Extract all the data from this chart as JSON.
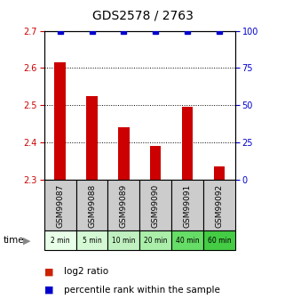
{
  "title": "GDS2578 / 2763",
  "samples": [
    "GSM99087",
    "GSM99088",
    "GSM99089",
    "GSM99090",
    "GSM99091",
    "GSM99092"
  ],
  "time_labels": [
    "2 min",
    "5 min",
    "10 min",
    "20 min",
    "40 min",
    "60 min"
  ],
  "log2_values": [
    2.615,
    2.525,
    2.44,
    2.39,
    2.495,
    2.335
  ],
  "percentile_values": [
    100,
    100,
    100,
    100,
    100,
    100
  ],
  "ylim_left": [
    2.3,
    2.7
  ],
  "ylim_right": [
    0,
    100
  ],
  "yticks_left": [
    2.3,
    2.4,
    2.5,
    2.6,
    2.7
  ],
  "yticks_right": [
    0,
    25,
    50,
    75,
    100
  ],
  "bar_color": "#cc0000",
  "percentile_color": "#0000cc",
  "bg_color": "#ffffff",
  "sample_box_color": "#cccccc",
  "time_box_colors": [
    "#e8ffe8",
    "#d4f8d4",
    "#c0f0c0",
    "#aaeeaa",
    "#66dd66",
    "#44cc44"
  ],
  "legend_log2_color": "#cc2200",
  "legend_pct_color": "#0000cc",
  "title_fontsize": 10,
  "tick_fontsize": 7,
  "label_fontsize": 6.5,
  "legend_fontsize": 7.5,
  "bar_width": 0.35,
  "percentile_marker_size": 5,
  "grid_yticks": [
    2.4,
    2.5,
    2.6
  ]
}
